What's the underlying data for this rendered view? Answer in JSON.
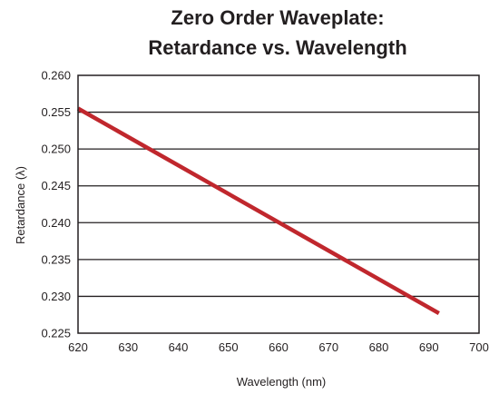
{
  "chart_data": {
    "type": "line",
    "title_line1": "Zero Order Waveplate:",
    "title_line2": "Retardance vs. Wavelength",
    "xlabel": "Wavelength (nm)",
    "ylabel": "Retardance (λ)",
    "xlim": [
      620,
      700
    ],
    "ylim": [
      0.225,
      0.26
    ],
    "x_ticks": [
      620,
      630,
      640,
      650,
      660,
      670,
      680,
      690,
      700
    ],
    "x_tick_labels": [
      "620",
      "630",
      "640",
      "650",
      "660",
      "670",
      "680",
      "690",
      "700"
    ],
    "y_ticks": [
      0.225,
      0.23,
      0.235,
      0.24,
      0.245,
      0.25,
      0.255,
      0.26
    ],
    "y_tick_labels": [
      "0.225",
      "0.230",
      "0.235",
      "0.240",
      "0.245",
      "0.250",
      "0.255",
      "0.260"
    ],
    "grid": "horizontal",
    "legend": "none",
    "series": [
      {
        "x": [
          620,
          692
        ],
        "y": [
          0.2555,
          0.2277
        ],
        "color": "#c0272d"
      }
    ]
  }
}
